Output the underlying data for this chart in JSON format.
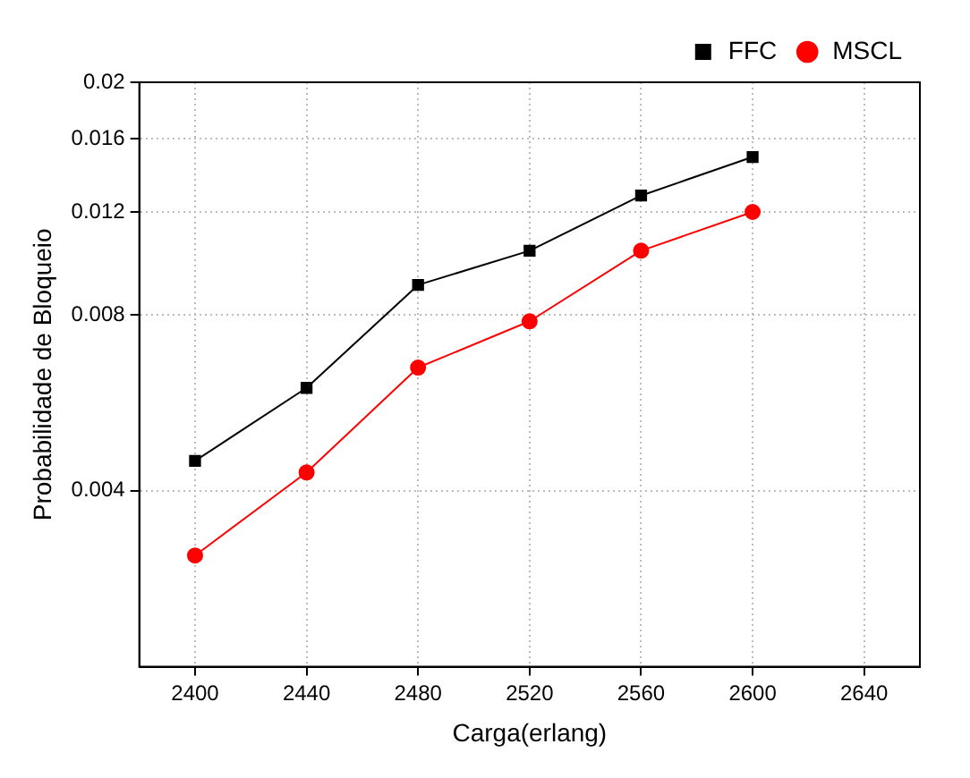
{
  "chart_data": {
    "type": "line",
    "xlabel": "Carga(erlang)",
    "ylabel": "Probabilidade de Bloqueio",
    "x": [
      2400,
      2440,
      2480,
      2520,
      2560,
      2600
    ],
    "series": [
      {
        "name": "FFC",
        "color": "#000000",
        "marker": "square",
        "values": [
          0.0045,
          0.006,
          0.009,
          0.0103,
          0.0128,
          0.0149
        ]
      },
      {
        "name": "MSCL",
        "color": "#ff0000",
        "marker": "circle",
        "values": [
          0.0031,
          0.0043,
          0.0065,
          0.0078,
          0.0103,
          0.012
        ]
      }
    ],
    "xlim": [
      2380,
      2660
    ],
    "xticks": [
      2400,
      2440,
      2480,
      2520,
      2560,
      2600,
      2640
    ],
    "ylim": [
      0.002,
      0.02
    ],
    "yticks": [
      0.004,
      0.008,
      0.012,
      0.016,
      0.02
    ],
    "log": "y",
    "grid": true,
    "legend": "top right",
    "line_style": "solid"
  }
}
